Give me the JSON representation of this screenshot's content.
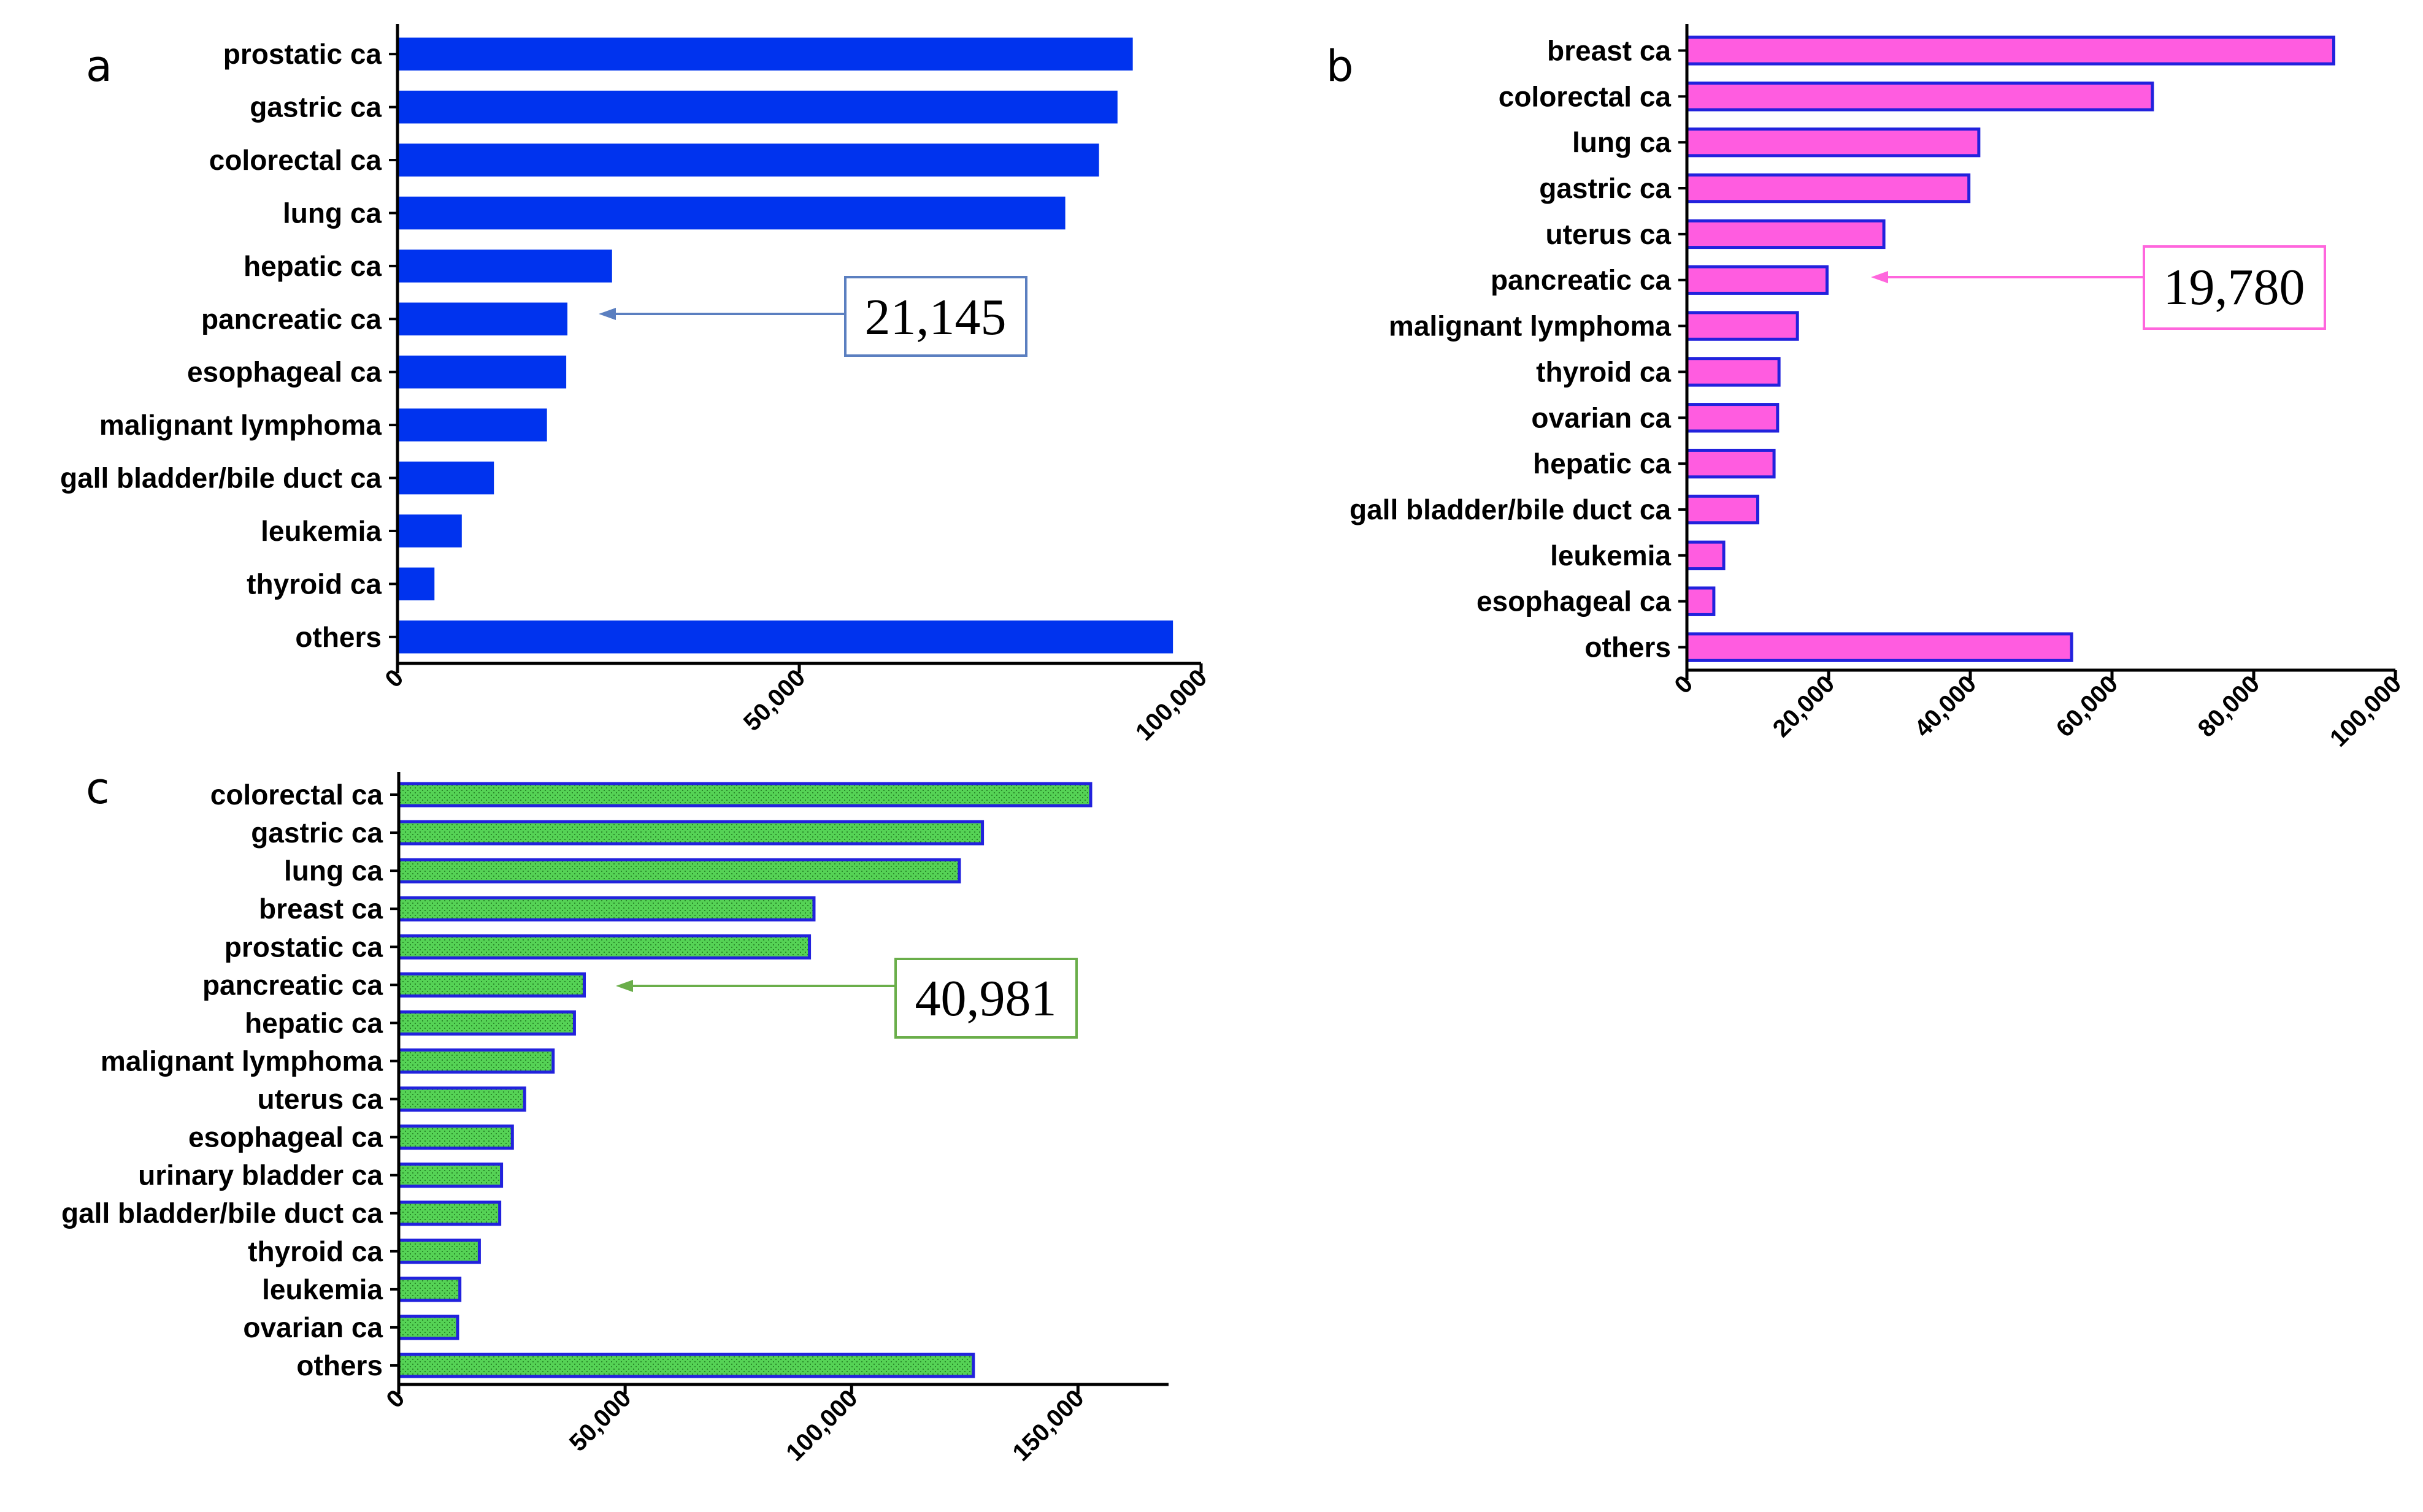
{
  "figure": {
    "panels": [
      "a",
      "b",
      "c"
    ]
  },
  "colors": {
    "a_fill": "#0033ee",
    "b_fill": "#ff5ce0",
    "b_edge": "#2222dd",
    "c_fill": "#55d255",
    "c_edge": "#2222dd",
    "a_callout": "#5b7fc0",
    "b_callout": "#ff66dd",
    "c_callout": "#6aae4a"
  },
  "chart_data": [
    {
      "panel": "a",
      "type": "bar",
      "orientation": "horizontal",
      "title": "",
      "xlabel": "",
      "ylabel": "",
      "categories": [
        "prostatic ca",
        "gastric ca",
        "colorectal ca",
        "lung ca",
        "hepatic ca",
        "pancreatic ca",
        "esophageal ca",
        "malignant lymphoma",
        "gall bladder/bile duct ca",
        "leukemia",
        "thyroid ca",
        "others"
      ],
      "values": [
        91500,
        89600,
        87300,
        83100,
        26700,
        21145,
        21000,
        18600,
        12000,
        8000,
        4600,
        96500
      ],
      "xlim": [
        0,
        100000
      ],
      "xticks": [
        0,
        50000,
        100000
      ],
      "xtick_labels": [
        "0",
        "50,000",
        "100,000"
      ],
      "callout": {
        "label": "21,145",
        "target": "pancreatic ca"
      }
    },
    {
      "panel": "b",
      "type": "bar",
      "orientation": "horizontal",
      "title": "",
      "xlabel": "",
      "ylabel": "",
      "categories": [
        "breast ca",
        "colorectal ca",
        "lung ca",
        "gastric ca",
        "uterus ca",
        "pancreatic ca",
        "malignant lymphoma",
        "thyroid ca",
        "ovarian ca",
        "hepatic ca",
        "gall bladder/bile duct ca",
        "leukemia",
        "esophageal ca",
        "others"
      ],
      "values": [
        91300,
        65700,
        41200,
        39800,
        27800,
        19780,
        15600,
        13000,
        12800,
        12300,
        10000,
        5200,
        3800,
        54300
      ],
      "xlim": [
        0,
        100000
      ],
      "xticks": [
        0,
        20000,
        40000,
        60000,
        80000,
        100000
      ],
      "xtick_labels": [
        "0",
        "20,000",
        "40,000",
        "60,000",
        "80,000",
        "100,000"
      ],
      "callout": {
        "label": "19,780",
        "target": "pancreatic ca"
      }
    },
    {
      "panel": "c",
      "type": "bar",
      "orientation": "horizontal",
      "title": "",
      "xlabel": "",
      "ylabel": "",
      "categories": [
        "colorectal ca",
        "gastric ca",
        "lung ca",
        "breast ca",
        "prostatic ca",
        "pancreatic ca",
        "hepatic ca",
        "malignant lymphoma",
        "uterus ca",
        "esophageal ca",
        "urinary bladder ca",
        "gall bladder/bile duct ca",
        "thyroid ca",
        "leukemia",
        "ovarian ca",
        "others"
      ],
      "values": [
        152800,
        128900,
        123800,
        91700,
        90700,
        40981,
        38800,
        34100,
        27800,
        25100,
        22700,
        22300,
        17800,
        13500,
        13000,
        126900
      ],
      "xlim": [
        0,
        170000
      ],
      "xticks": [
        0,
        50000,
        100000,
        150000
      ],
      "xtick_labels": [
        "0",
        "50,000",
        "100,000",
        "150,000"
      ],
      "callout": {
        "label": "40,981",
        "target": "pancreatic ca"
      }
    }
  ]
}
